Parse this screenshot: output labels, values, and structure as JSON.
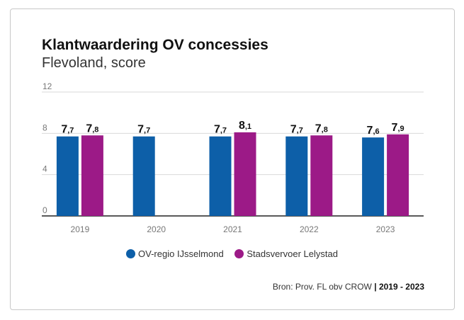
{
  "header": {
    "title": "Klantwaardering OV concessies",
    "subtitle": "Flevoland, score"
  },
  "source": {
    "text": "Bron: Prov. FL obv CROW",
    "separator": "|",
    "period": "2019 - 2023"
  },
  "colors": {
    "series_1": "#0d5fa8",
    "series_2": "#9c1a87",
    "grid": "#d9d9d9",
    "axis": "#222222"
  },
  "chart_data": {
    "type": "bar",
    "title": "Klantwaardering OV concessies",
    "subtitle": "Flevoland, score",
    "categories": [
      "2019",
      "2020",
      "2021",
      "2022",
      "2023"
    ],
    "series": [
      {
        "name": "OV-regio IJsselmond",
        "values": [
          7.7,
          7.7,
          7.7,
          7.7,
          7.6
        ]
      },
      {
        "name": "Stadsvervoer Lelystad",
        "values": [
          7.8,
          null,
          8.1,
          7.8,
          7.9
        ]
      }
    ],
    "ylim": [
      0,
      12
    ],
    "yticks": [
      "0",
      "4",
      "8",
      "12"
    ],
    "data_labels": [
      [
        [
          "7",
          ",7"
        ],
        [
          "7",
          ",7"
        ],
        [
          "7",
          ",7"
        ],
        [
          "7",
          ",7"
        ],
        [
          "7",
          ",6"
        ]
      ],
      [
        [
          "7",
          ",8"
        ],
        null,
        [
          "8",
          ",1"
        ],
        [
          "7",
          ",8"
        ],
        [
          "7",
          ",9"
        ]
      ]
    ],
    "grid": true,
    "legend": "bottom-center"
  }
}
